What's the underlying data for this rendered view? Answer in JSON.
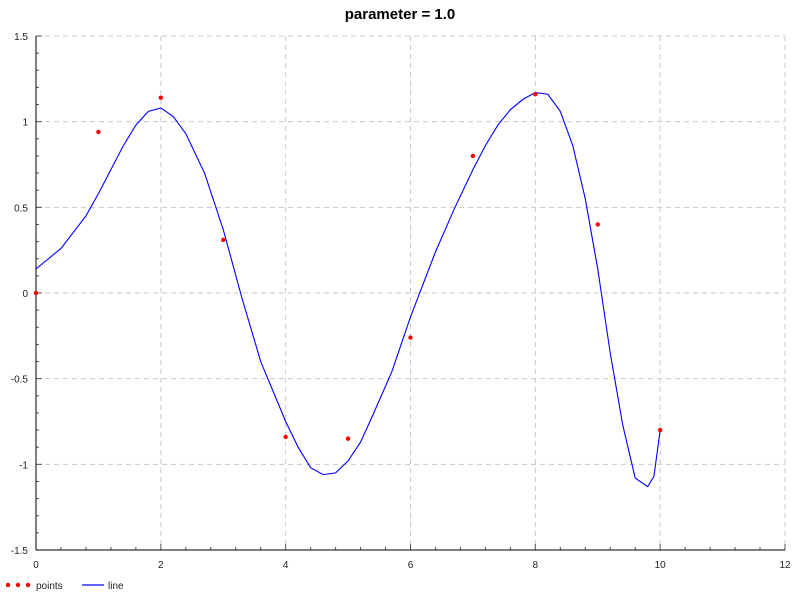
{
  "chart_data": {
    "type": "scatter",
    "title": "parameter = 1.0",
    "xlabel": "",
    "ylabel": "",
    "xlim": [
      0,
      12
    ],
    "ylim": [
      -1.5,
      1.5
    ],
    "x_ticks": [
      "0",
      "2",
      "4",
      "6",
      "8",
      "10",
      "12"
    ],
    "y_ticks": [
      "1.5",
      "1",
      "0.5",
      "0",
      "-0.5",
      "-1",
      "-1.5"
    ],
    "grid": true,
    "legend_position": "bottom-left",
    "series": [
      {
        "name": "points",
        "kind": "scatter",
        "color": "#ff0000",
        "x": [
          0,
          1,
          2,
          3,
          4,
          5,
          6,
          7,
          8,
          9,
          10
        ],
        "y": [
          0.0,
          0.94,
          1.14,
          0.31,
          -0.84,
          -0.85,
          -0.26,
          0.8,
          1.16,
          0.4,
          -0.8
        ]
      },
      {
        "name": "line",
        "kind": "line",
        "color": "#0000ff",
        "x": [
          0,
          0.4,
          0.8,
          1.0,
          1.2,
          1.4,
          1.6,
          1.8,
          2.0,
          2.2,
          2.4,
          2.7,
          3.0,
          3.3,
          3.6,
          4.0,
          4.2,
          4.4,
          4.6,
          4.8,
          5.0,
          5.2,
          5.4,
          5.7,
          6.0,
          6.2,
          6.4,
          6.7,
          7.0,
          7.2,
          7.4,
          7.6,
          7.8,
          8.0,
          8.2,
          8.4,
          8.6,
          8.8,
          9.0,
          9.2,
          9.4,
          9.6,
          9.8,
          9.9,
          10.0
        ],
        "y": [
          0.14,
          0.26,
          0.45,
          0.58,
          0.72,
          0.86,
          0.98,
          1.06,
          1.08,
          1.03,
          0.93,
          0.7,
          0.37,
          -0.03,
          -0.4,
          -0.75,
          -0.9,
          -1.02,
          -1.06,
          -1.05,
          -0.98,
          -0.87,
          -0.71,
          -0.46,
          -0.14,
          0.05,
          0.24,
          0.49,
          0.72,
          0.86,
          0.98,
          1.07,
          1.13,
          1.17,
          1.16,
          1.06,
          0.86,
          0.55,
          0.14,
          -0.35,
          -0.77,
          -1.08,
          -1.13,
          -1.07,
          -0.8
        ]
      }
    ]
  }
}
